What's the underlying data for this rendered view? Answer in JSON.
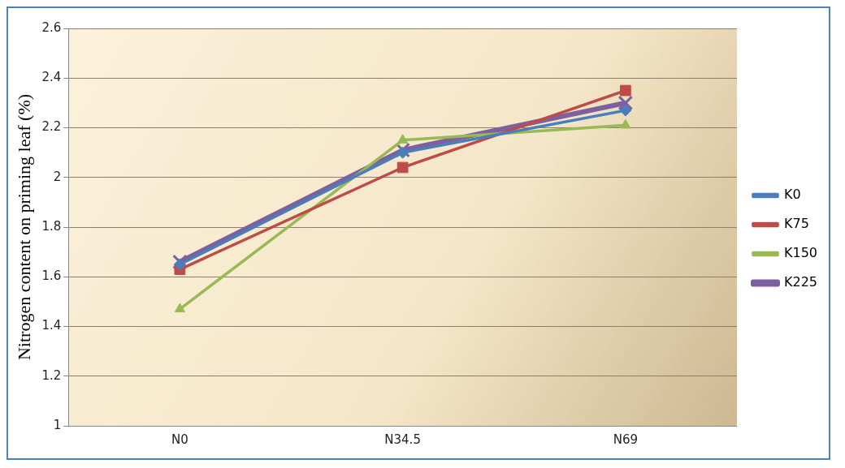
{
  "chart_data": {
    "type": "line",
    "ylabel": "Nitrogen content on priming leaf (%)",
    "categories": [
      "N0",
      "N34.5",
      "N69"
    ],
    "series": [
      {
        "name": "K0",
        "color": "#4a7ebb",
        "marker": "diamond",
        "values": [
          1.65,
          2.1,
          2.27
        ]
      },
      {
        "name": "K75",
        "color": "#be4b48",
        "marker": "square",
        "values": [
          1.63,
          2.04,
          2.35
        ]
      },
      {
        "name": "K150",
        "color": "#98b954",
        "marker": "triangle",
        "values": [
          1.47,
          2.15,
          2.21
        ]
      },
      {
        "name": "K225",
        "color": "#7d60a0",
        "marker": "cross",
        "values": [
          1.66,
          2.11,
          2.3
        ]
      }
    ],
    "ylim": [
      1,
      2.6
    ],
    "yticks": [
      1,
      1.2,
      1.4,
      1.6,
      1.8,
      2,
      2.2,
      2.4,
      2.6
    ],
    "grid": "y",
    "legend": "right"
  }
}
